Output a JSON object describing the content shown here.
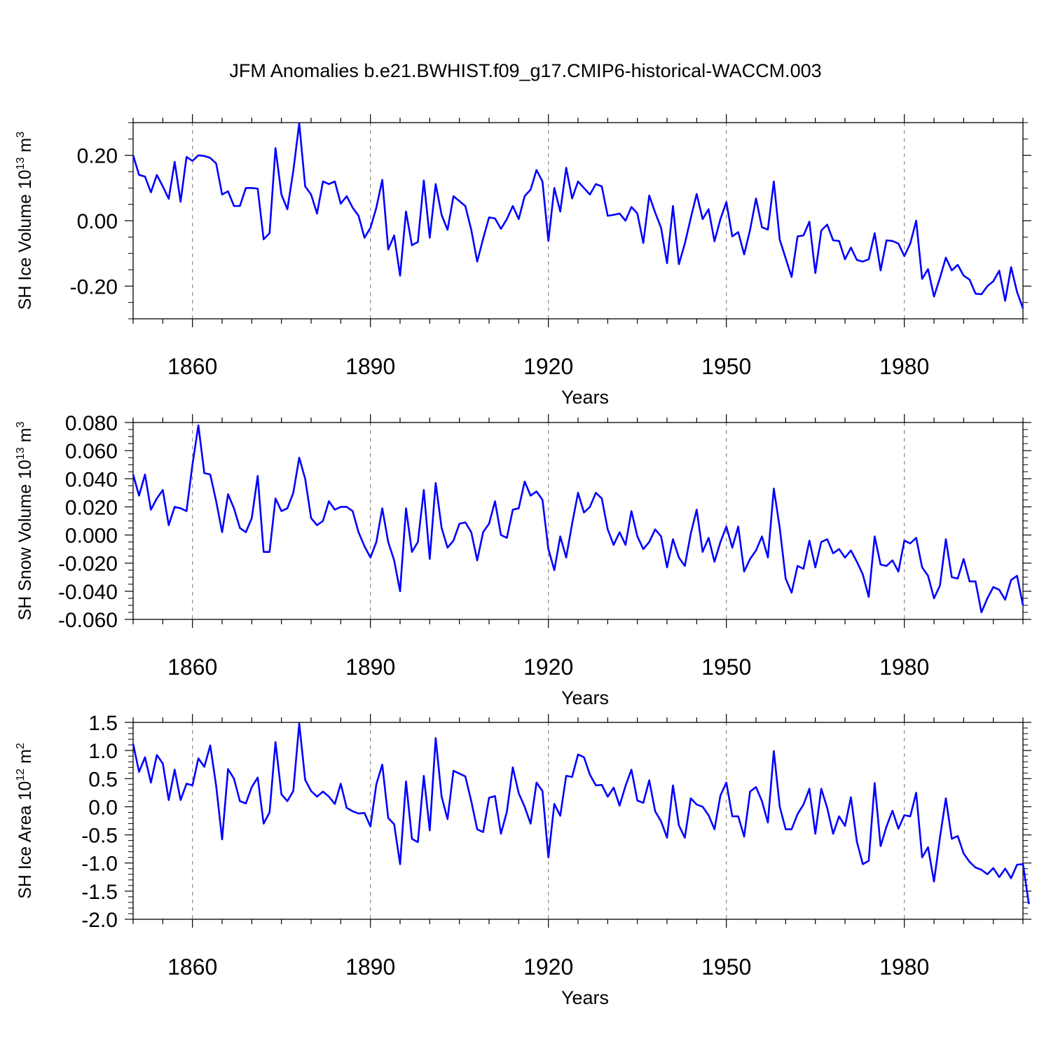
{
  "figure": {
    "title": "JFM Anomalies b.e21.BWHIST.f09_g17.CMIP6-historical-WACCM.003",
    "line_color": "#0000ff"
  },
  "chart_data": [
    {
      "type": "line",
      "ylabel_main": "SH Ice Volume 10",
      "ylabel_sup1": "13",
      "ylabel_mid": " m",
      "ylabel_sup2": "3",
      "xlabel": "Years",
      "xlim": [
        1850,
        2000
      ],
      "ylim": [
        -0.3,
        0.3
      ],
      "yticks": [
        -0.2,
        0.0,
        0.2
      ],
      "ytick_labels": [
        "-0.20",
        "0.00",
        "0.20"
      ],
      "yminor_step": 0.05,
      "xticks": [
        1860,
        1890,
        1920,
        1950,
        1980
      ],
      "xtick_labels": [
        "1860",
        "1890",
        "1920",
        "1950",
        "1980"
      ],
      "start_year": 1850,
      "values": [
        0.2,
        0.14,
        0.135,
        0.087,
        0.14,
        0.105,
        0.067,
        0.18,
        0.058,
        0.195,
        0.183,
        0.2,
        0.198,
        0.192,
        0.175,
        0.08,
        0.09,
        0.045,
        0.045,
        0.1,
        0.1,
        0.098,
        -0.057,
        -0.038,
        0.222,
        0.08,
        0.035,
        0.152,
        0.298,
        0.105,
        0.08,
        0.022,
        0.12,
        0.112,
        0.12,
        0.052,
        0.075,
        0.04,
        0.015,
        -0.052,
        -0.022,
        0.04,
        0.125,
        -0.088,
        -0.045,
        -0.168,
        0.028,
        -0.075,
        -0.065,
        0.123,
        -0.052,
        0.112,
        0.018,
        -0.028,
        0.075,
        0.06,
        0.045,
        -0.028,
        -0.125,
        -0.055,
        0.01,
        0.007,
        -0.025,
        0.005,
        0.045,
        0.005,
        0.075,
        0.095,
        0.155,
        0.12,
        -0.062,
        0.1,
        0.028,
        0.162,
        0.068,
        0.12,
        0.1,
        0.08,
        0.112,
        0.105,
        0.015,
        0.018,
        0.022,
        0.0,
        0.042,
        0.022,
        -0.068,
        0.077,
        0.025,
        -0.022,
        -0.13,
        0.045,
        -0.133,
        -0.07,
        0.008,
        0.082,
        0.005,
        0.035,
        -0.063,
        0.005,
        0.057,
        -0.048,
        -0.035,
        -0.103,
        -0.028,
        0.068,
        -0.02,
        -0.027,
        0.12,
        -0.058,
        -0.115,
        -0.172,
        -0.048,
        -0.045,
        -0.003,
        -0.16,
        -0.03,
        -0.012,
        -0.06,
        -0.062,
        -0.118,
        -0.082,
        -0.12,
        -0.125,
        -0.118,
        -0.038,
        -0.152,
        -0.06,
        -0.062,
        -0.07,
        -0.108,
        -0.07,
        0.0,
        -0.178,
        -0.148,
        -0.232,
        -0.175,
        -0.113,
        -0.152,
        -0.135,
        -0.168,
        -0.18,
        -0.223,
        -0.225,
        -0.2,
        -0.185,
        -0.153,
        -0.245,
        -0.142,
        -0.218,
        -0.268
      ]
    },
    {
      "type": "line",
      "ylabel_main": "SH Snow Volume 10",
      "ylabel_sup1": "13",
      "ylabel_mid": " m",
      "ylabel_sup2": "3",
      "xlabel": "Years",
      "xlim": [
        1850,
        2000
      ],
      "ylim": [
        -0.06,
        0.08
      ],
      "yticks": [
        -0.06,
        -0.04,
        -0.02,
        0.0,
        0.02,
        0.04,
        0.06,
        0.08
      ],
      "ytick_labels": [
        "-0.060",
        "-0.040",
        "-0.020",
        "0.000",
        "0.020",
        "0.040",
        "0.060",
        "0.080"
      ],
      "yminor_step": 0.005,
      "xticks": [
        1860,
        1890,
        1920,
        1950,
        1980
      ],
      "xtick_labels": [
        "1860",
        "1890",
        "1920",
        "1950",
        "1980"
      ],
      "start_year": 1850,
      "values": [
        0.043,
        0.028,
        0.043,
        0.018,
        0.026,
        0.032,
        0.007,
        0.02,
        0.019,
        0.017,
        0.05,
        0.078,
        0.044,
        0.043,
        0.024,
        0.002,
        0.029,
        0.019,
        0.005,
        0.002,
        0.012,
        0.042,
        -0.012,
        -0.012,
        0.026,
        0.017,
        0.019,
        0.03,
        0.055,
        0.04,
        0.012,
        0.007,
        0.01,
        0.024,
        0.018,
        0.02,
        0.02,
        0.017,
        0.002,
        -0.008,
        -0.016,
        -0.005,
        0.019,
        -0.005,
        -0.018,
        -0.04,
        0.019,
        -0.012,
        -0.005,
        0.032,
        -0.017,
        0.037,
        0.005,
        -0.009,
        -0.004,
        0.008,
        0.009,
        0.002,
        -0.018,
        0.002,
        0.008,
        0.024,
        0.0,
        -0.002,
        0.018,
        0.019,
        0.038,
        0.028,
        0.031,
        0.025,
        -0.01,
        -0.025,
        -0.001,
        -0.016,
        0.008,
        0.03,
        0.016,
        0.02,
        0.03,
        0.026,
        0.004,
        -0.007,
        0.002,
        -0.007,
        0.017,
        -0.001,
        -0.01,
        -0.005,
        0.004,
        -0.001,
        -0.023,
        -0.003,
        -0.016,
        -0.022,
        0.001,
        0.018,
        -0.012,
        -0.002,
        -0.019,
        -0.005,
        0.006,
        -0.009,
        0.006,
        -0.026,
        -0.017,
        -0.011,
        -0.001,
        -0.016,
        0.033,
        0.005,
        -0.031,
        -0.041,
        -0.022,
        -0.024,
        -0.004,
        -0.023,
        -0.005,
        -0.003,
        -0.013,
        -0.01,
        -0.016,
        -0.011,
        -0.019,
        -0.028,
        -0.044,
        -0.001,
        -0.021,
        -0.022,
        -0.018,
        -0.026,
        -0.004,
        -0.006,
        -0.002,
        -0.023,
        -0.029,
        -0.045,
        -0.036,
        -0.003,
        -0.03,
        -0.031,
        -0.017,
        -0.033,
        -0.033,
        -0.055,
        -0.045,
        -0.037,
        -0.039,
        -0.046,
        -0.032,
        -0.029,
        -0.05
      ]
    },
    {
      "type": "line",
      "ylabel_main": "SH Ice Area 10",
      "ylabel_sup1": "12",
      "ylabel_mid": " m",
      "ylabel_sup2": "2",
      "xlabel": "Years",
      "xlim": [
        1850,
        2000
      ],
      "ylim": [
        -2.0,
        1.5
      ],
      "yticks": [
        -2.0,
        -1.5,
        -1.0,
        -0.5,
        0.0,
        0.5,
        1.0,
        1.5
      ],
      "ytick_labels": [
        "-2.0",
        "-1.5",
        "-1.0",
        "-0.5",
        "0.0",
        "0.5",
        "1.0",
        "1.5"
      ],
      "yminor_step": 0.1,
      "xticks": [
        1860,
        1890,
        1920,
        1950,
        1980
      ],
      "xtick_labels": [
        "1860",
        "1890",
        "1920",
        "1950",
        "1980"
      ],
      "start_year": 1850,
      "values": [
        1.12,
        0.62,
        0.88,
        0.43,
        0.92,
        0.77,
        0.12,
        0.66,
        0.12,
        0.41,
        0.38,
        0.86,
        0.71,
        1.09,
        0.37,
        -0.58,
        0.67,
        0.5,
        0.1,
        0.06,
        0.35,
        0.52,
        -0.3,
        -0.1,
        1.15,
        0.22,
        0.1,
        0.28,
        1.48,
        0.48,
        0.28,
        0.18,
        0.27,
        0.18,
        0.05,
        0.41,
        -0.02,
        -0.08,
        -0.12,
        -0.11,
        -0.35,
        0.4,
        0.75,
        -0.2,
        -0.31,
        -1.02,
        0.45,
        -0.57,
        -0.63,
        0.55,
        -0.42,
        1.22,
        0.18,
        -0.22,
        0.64,
        0.59,
        0.54,
        0.1,
        -0.4,
        -0.45,
        0.16,
        0.19,
        -0.48,
        -0.09,
        0.7,
        0.24,
        0.0,
        -0.3,
        0.43,
        0.28,
        -0.9,
        0.05,
        -0.16,
        0.55,
        0.53,
        0.93,
        0.88,
        0.57,
        0.38,
        0.39,
        0.18,
        0.34,
        0.02,
        0.37,
        0.66,
        0.11,
        0.07,
        0.47,
        -0.08,
        -0.26,
        -0.55,
        0.38,
        -0.33,
        -0.55,
        0.15,
        0.04,
        0.0,
        -0.15,
        -0.4,
        0.2,
        0.43,
        -0.17,
        -0.17,
        -0.53,
        0.27,
        0.35,
        0.1,
        -0.28,
        0.99,
        0.0,
        -0.4,
        -0.4,
        -0.13,
        0.04,
        0.32,
        -0.48,
        0.32,
        -0.02,
        -0.48,
        -0.17,
        -0.34,
        0.17,
        -0.62,
        -1.02,
        -0.96,
        0.42,
        -0.7,
        -0.35,
        -0.07,
        -0.39,
        -0.15,
        -0.17,
        0.25,
        -0.9,
        -0.72,
        -1.33,
        -0.55,
        0.15,
        -0.57,
        -0.52,
        -0.83,
        -0.98,
        -1.08,
        -1.12,
        -1.2,
        -1.09,
        -1.25,
        -1.1,
        -1.27,
        -1.03,
        -1.02,
        -1.73
      ]
    }
  ]
}
